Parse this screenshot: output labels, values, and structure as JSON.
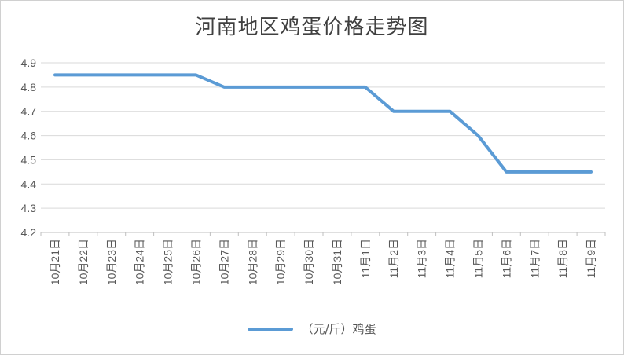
{
  "chart_data": {
    "type": "line",
    "title": "河南地区鸡蛋价格走势图",
    "categories": [
      "10月21日",
      "10月22日",
      "10月23日",
      "10月24日",
      "10月25日",
      "10月26日",
      "10月27日",
      "10月28日",
      "10月29日",
      "10月30日",
      "10月31日",
      "11月1日",
      "11月2日",
      "11月3日",
      "11月4日",
      "11月5日",
      "11月6日",
      "11月7日",
      "11月8日",
      "11月9日"
    ],
    "series": [
      {
        "name": "（元/斤）鸡蛋",
        "color": "#5b9bd5",
        "values": [
          4.85,
          4.85,
          4.85,
          4.85,
          4.85,
          4.85,
          4.8,
          4.8,
          4.8,
          4.8,
          4.8,
          4.8,
          4.7,
          4.7,
          4.7,
          4.6,
          4.45,
          4.45,
          4.45,
          4.45
        ]
      }
    ],
    "ylim": [
      4.2,
      4.9
    ],
    "yticks": [
      "4.2",
      "4.3",
      "4.4",
      "4.5",
      "4.6",
      "4.7",
      "4.8",
      "4.9"
    ],
    "grid": true,
    "legend": "bottom"
  }
}
